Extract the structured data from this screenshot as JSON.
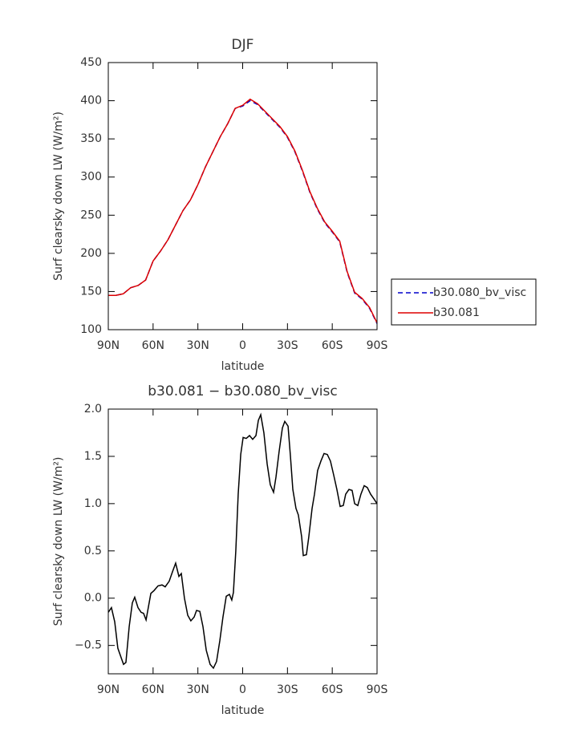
{
  "chart_data": [
    {
      "type": "line",
      "title": "DJF",
      "xlabel": "latitude",
      "ylabel": "Surf clearsky down LW (W/m²)",
      "x": [
        90,
        85,
        80,
        75,
        70,
        65,
        60,
        55,
        50,
        45,
        40,
        35,
        30,
        25,
        20,
        15,
        10,
        5,
        0,
        -5,
        -10,
        -15,
        -20,
        -25,
        -30,
        -35,
        -40,
        -45,
        -50,
        -55,
        -60,
        -65,
        -70,
        -75,
        -80,
        -85,
        -90
      ],
      "series": [
        {
          "name": "b30.080_bv_visc",
          "color": "#0000cc",
          "line_style": "dashed",
          "values": [
            145,
            145,
            147,
            155,
            158,
            165,
            190,
            203,
            218,
            237,
            256,
            270,
            290,
            313,
            333,
            353,
            370,
            390,
            393,
            400,
            395,
            385,
            375,
            365,
            352,
            333,
            308,
            280,
            258,
            240,
            228,
            215,
            175,
            148,
            140,
            128,
            108
          ]
        },
        {
          "name": "b30.081",
          "color": "#dd0000",
          "line_style": "solid",
          "values": [
            145,
            145,
            147,
            155,
            158,
            165,
            190,
            203,
            218,
            237,
            256,
            270,
            290,
            313,
            333,
            353,
            370,
            390,
            394,
            402,
            396,
            386,
            376,
            366,
            353,
            334,
            309,
            281,
            259,
            241,
            229,
            216,
            176,
            149,
            141,
            129,
            109
          ]
        }
      ],
      "xlim": [
        90,
        -90
      ],
      "xticks": [
        {
          "value": 90,
          "label": "90N"
        },
        {
          "value": 60,
          "label": "60N"
        },
        {
          "value": 30,
          "label": "30N"
        },
        0,
        {
          "value": -30,
          "label": "30S"
        },
        {
          "value": -60,
          "label": "60S"
        },
        {
          "value": -90,
          "label": "90S"
        }
      ],
      "ylim": [
        100,
        450
      ],
      "yticks": [
        100,
        150,
        200,
        250,
        300,
        350,
        400,
        450
      ],
      "legend": "right"
    },
    {
      "type": "line",
      "title": "b30.081 − b30.080_bv_visc",
      "xlabel": "latitude",
      "ylabel": "Surf clearsky down LW (W/m²)",
      "x": [
        90,
        87.9,
        85.7,
        83.6,
        79.8,
        78.2,
        76.0,
        73.9,
        72.3,
        70.1,
        68.0,
        66.4,
        64.7,
        61.5,
        59.4,
        56.7,
        54.0,
        51.9,
        49.2,
        47.0,
        44.9,
        42.7,
        41.1,
        39.0,
        36.8,
        34.7,
        32.5,
        30.9,
        28.7,
        26.6,
        24.4,
        21.8,
        19.6,
        17.5,
        15.3,
        13.2,
        11.0,
        8.9,
        7.3,
        6.2,
        4.6,
        3.0,
        1.3,
        -0.3,
        -2.4,
        -4.6,
        -6.7,
        -8.9,
        -10.5,
        -12.1,
        -14.2,
        -16.4,
        -18.5,
        -20.7,
        -22.3,
        -24.4,
        -26.6,
        -28.2,
        -30.4,
        -32.0,
        -33.6,
        -35.7,
        -37.3,
        -39.5,
        -40.6,
        -42.7,
        -44.3,
        -46.5,
        -48.1,
        -50.2,
        -52.4,
        -54.5,
        -56.7,
        -58.8,
        -61.0,
        -63.1,
        -65.3,
        -67.4,
        -69.0,
        -71.2,
        -73.3,
        -75.0,
        -77.1,
        -79.2,
        -81.4,
        -83.5,
        -85.7,
        -87.9,
        -90
      ],
      "series": [
        {
          "name": "b30.081 − b30.080_bv_visc",
          "color": "#000000",
          "line_style": "solid",
          "values": [
            -0.15,
            -0.1,
            -0.25,
            -0.53,
            -0.7,
            -0.68,
            -0.3,
            -0.05,
            0.01,
            -0.1,
            -0.15,
            -0.16,
            -0.23,
            0.05,
            0.08,
            0.13,
            0.14,
            0.12,
            0.18,
            0.28,
            0.37,
            0.23,
            0.26,
            0.0,
            -0.18,
            -0.24,
            -0.2,
            -0.13,
            -0.14,
            -0.3,
            -0.55,
            -0.7,
            -0.74,
            -0.67,
            -0.45,
            -0.2,
            0.02,
            0.04,
            -0.02,
            0.06,
            0.5,
            1.1,
            1.52,
            1.7,
            1.69,
            1.72,
            1.68,
            1.72,
            1.88,
            1.94,
            1.75,
            1.42,
            1.2,
            1.12,
            1.28,
            1.55,
            1.8,
            1.87,
            1.82,
            1.5,
            1.15,
            0.95,
            0.88,
            0.65,
            0.45,
            0.46,
            0.65,
            0.95,
            1.1,
            1.35,
            1.45,
            1.53,
            1.52,
            1.45,
            1.3,
            1.15,
            0.97,
            0.98,
            1.1,
            1.15,
            1.14,
            1.0,
            0.98,
            1.1,
            1.19,
            1.17,
            1.1,
            1.05,
            1.0
          ]
        }
      ],
      "xlim": [
        90,
        -90
      ],
      "xticks": [
        {
          "value": 90,
          "label": "90N"
        },
        {
          "value": 60,
          "label": "60N"
        },
        {
          "value": 30,
          "label": "30N"
        },
        0,
        {
          "value": -30,
          "label": "30S"
        },
        {
          "value": -60,
          "label": "60S"
        },
        {
          "value": -90,
          "label": "90S"
        }
      ],
      "ylim": [
        -0.8,
        2.0
      ],
      "yticks": [
        {
          "value": -0.5,
          "label": "−0.5"
        },
        {
          "value": 0,
          "label": "0.0"
        },
        0.5,
        {
          "value": 1,
          "label": "1.0"
        },
        1.5,
        {
          "value": 2,
          "label": "2.0"
        }
      ]
    }
  ]
}
